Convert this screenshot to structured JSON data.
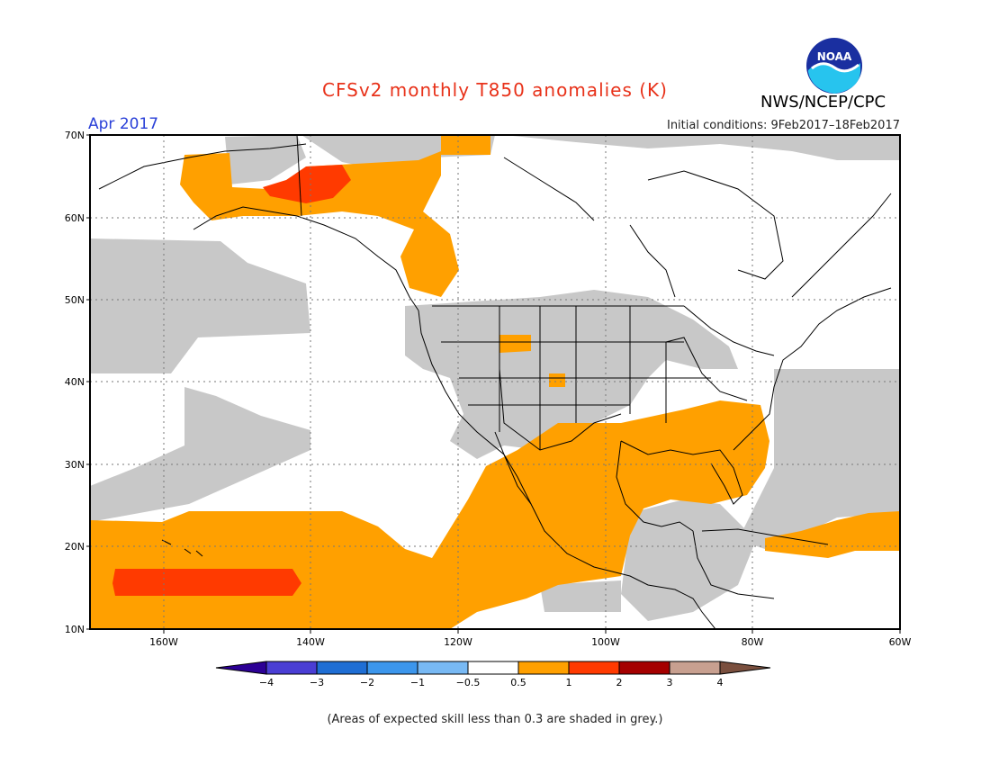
{
  "header": {
    "title": "CFSv2 monthly T850 anomalies (K)",
    "org": "NWS/NCEP/CPC",
    "month": "Apr 2017",
    "initial_conditions": "Initial conditions: 9Feb2017–18Feb2017",
    "logo_text": "NOAA"
  },
  "map": {
    "lat_ticks": [
      "70N",
      "60N",
      "50N",
      "40N",
      "30N",
      "20N",
      "10N"
    ],
    "lon_ticks": [
      "160W",
      "140W",
      "120W",
      "100W",
      "80W",
      "60W"
    ],
    "colors": {
      "grey": "#c8c8c8",
      "orange": "#ffa000",
      "red": "#ff3a00",
      "coast": "#000000"
    }
  },
  "colorbar": {
    "labels": [
      "−4",
      "−3",
      "−2",
      "−1",
      "−0.5",
      "0.5",
      "1",
      "2",
      "3",
      "4"
    ],
    "colors": [
      "#2c0095",
      "#4a3ed4",
      "#1f6ed4",
      "#3c96ec",
      "#78b9f4",
      "#ffffff",
      "#ffa000",
      "#ff3a00",
      "#a50000",
      "#c8a090",
      "#7a4f3e"
    ]
  },
  "footnote": "(Areas of expected skill less than 0.3 are shaded in grey.)"
}
